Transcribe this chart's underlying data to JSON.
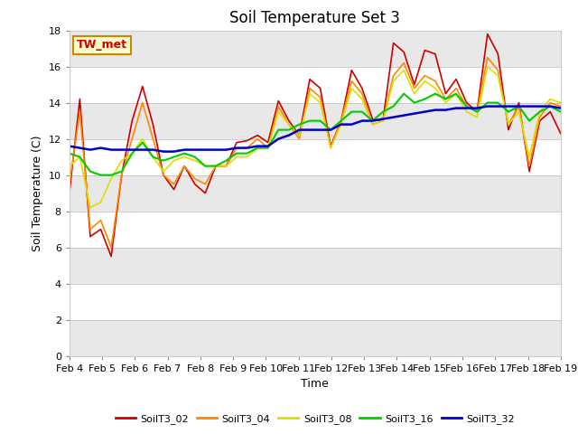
{
  "title": "Soil Temperature Set 3",
  "xlabel": "Time",
  "ylabel": "Soil Temperature (C)",
  "ylim": [
    0,
    18
  ],
  "yticks": [
    0,
    2,
    4,
    6,
    8,
    10,
    12,
    14,
    16,
    18
  ],
  "x_labels": [
    "Feb 4",
    "Feb 5",
    "Feb 6",
    "Feb 7",
    "Feb 8",
    "Feb 9",
    "Feb 10",
    "Feb 11",
    "Feb 12",
    "Feb 13",
    "Feb 14",
    "Feb 15",
    "Feb 16",
    "Feb 17",
    "Feb 18",
    "Feb 19"
  ],
  "annotation_text": "TW_met",
  "annotation_color": "#cc0000",
  "annotation_bg": "#ffffcc",
  "annotation_border": "#cc8800",
  "band_colors": [
    "#e8e8e8",
    "#ffffff"
  ],
  "outer_bg": "#ffffff",
  "series_order": [
    "SoilT3_02",
    "SoilT3_04",
    "SoilT3_08",
    "SoilT3_16",
    "SoilT3_32"
  ],
  "series": {
    "SoilT3_02": {
      "color": "#cc0000",
      "linewidth": 1.2,
      "values": [
        9.0,
        14.2,
        6.6,
        7.0,
        5.5,
        10.0,
        13.0,
        14.9,
        12.8,
        10.0,
        9.2,
        10.5,
        9.5,
        9.0,
        10.5,
        10.5,
        11.8,
        11.9,
        12.2,
        11.8,
        14.1,
        13.0,
        12.2,
        15.3,
        14.8,
        11.6,
        13.0,
        15.8,
        14.8,
        13.1,
        13.0,
        17.3,
        16.8,
        15.0,
        16.9,
        16.7,
        14.5,
        15.3,
        14.0,
        13.5,
        17.8,
        16.7,
        12.5,
        14.0,
        10.2,
        13.0,
        13.5,
        12.3
      ]
    },
    "SoilT3_04": {
      "color": "#ff8800",
      "linewidth": 1.2,
      "values": [
        9.5,
        13.5,
        7.0,
        7.5,
        6.0,
        10.0,
        12.0,
        14.0,
        12.0,
        10.0,
        9.5,
        10.5,
        9.8,
        9.5,
        10.5,
        10.5,
        11.5,
        11.5,
        12.0,
        11.5,
        13.8,
        12.8,
        12.0,
        14.8,
        14.3,
        11.5,
        13.0,
        15.2,
        14.5,
        12.8,
        13.0,
        15.5,
        16.2,
        14.8,
        15.5,
        15.2,
        14.2,
        14.8,
        13.8,
        13.5,
        16.5,
        15.8,
        12.8,
        13.8,
        10.5,
        13.2,
        14.0,
        13.8
      ]
    },
    "SoilT3_08": {
      "color": "#dddd00",
      "linewidth": 1.2,
      "values": [
        10.5,
        11.0,
        8.2,
        8.5,
        9.8,
        10.8,
        11.2,
        12.0,
        11.0,
        10.2,
        10.8,
        11.0,
        10.8,
        10.5,
        10.5,
        10.5,
        11.0,
        11.0,
        11.5,
        11.5,
        13.5,
        12.8,
        12.2,
        14.5,
        14.0,
        11.5,
        12.8,
        14.8,
        14.2,
        12.8,
        13.0,
        15.2,
        15.8,
        14.5,
        15.2,
        14.8,
        14.0,
        14.5,
        13.5,
        13.2,
        16.0,
        15.5,
        12.8,
        13.5,
        11.0,
        13.5,
        14.2,
        14.0
      ]
    },
    "SoilT3_16": {
      "color": "#00cc00",
      "linewidth": 1.5,
      "values": [
        11.2,
        11.0,
        10.2,
        10.0,
        10.0,
        10.2,
        11.2,
        11.8,
        11.0,
        10.8,
        11.0,
        11.2,
        11.0,
        10.5,
        10.5,
        10.8,
        11.2,
        11.2,
        11.5,
        11.5,
        12.5,
        12.5,
        12.8,
        13.0,
        13.0,
        12.5,
        13.0,
        13.5,
        13.5,
        13.0,
        13.5,
        13.8,
        14.5,
        14.0,
        14.2,
        14.5,
        14.2,
        14.5,
        13.8,
        13.5,
        14.0,
        14.0,
        13.5,
        13.8,
        13.0,
        13.5,
        13.8,
        13.5
      ]
    },
    "SoilT3_32": {
      "color": "#0000cc",
      "linewidth": 1.8,
      "values": [
        11.6,
        11.5,
        11.4,
        11.5,
        11.4,
        11.4,
        11.4,
        11.4,
        11.4,
        11.3,
        11.3,
        11.4,
        11.4,
        11.4,
        11.4,
        11.4,
        11.5,
        11.5,
        11.6,
        11.6,
        12.0,
        12.2,
        12.5,
        12.5,
        12.5,
        12.5,
        12.8,
        12.8,
        13.0,
        13.0,
        13.1,
        13.2,
        13.3,
        13.4,
        13.5,
        13.6,
        13.6,
        13.7,
        13.7,
        13.7,
        13.8,
        13.8,
        13.8,
        13.8,
        13.8,
        13.8,
        13.8,
        13.7
      ]
    }
  },
  "legend_entries": [
    "SoilT3_02",
    "SoilT3_04",
    "SoilT3_08",
    "SoilT3_16",
    "SoilT3_32"
  ],
  "legend_colors": [
    "#cc0000",
    "#ff8800",
    "#dddd00",
    "#00cc00",
    "#0000cc"
  ]
}
